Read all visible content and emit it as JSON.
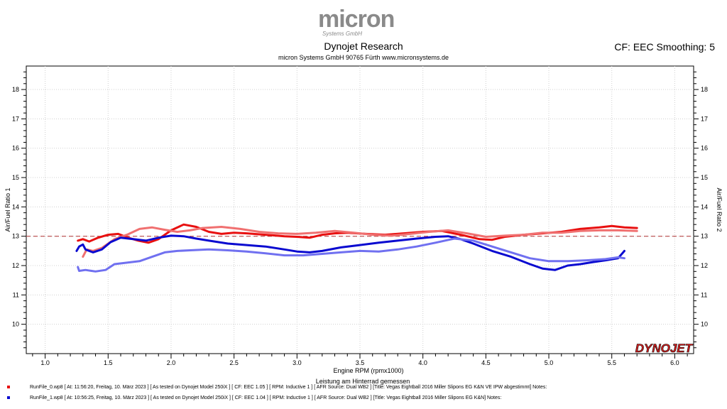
{
  "header": {
    "logo_text": "micron",
    "logo_subtext": "Systems GmbH",
    "title": "Dynojet Research",
    "subtitle": "micron Systems GmbH  90765 Fürth www.micronsystems.de",
    "cf_label": "CF: EEC Smoothing: 5",
    "brand_logo": "DYNOJET"
  },
  "colors": {
    "run0_primary": "#e81010",
    "run0_secondary": "#f07070",
    "run1_primary": "#0a0ad0",
    "run1_secondary": "#7070f0",
    "reference_line": "#b03030"
  },
  "chart_data": {
    "type": "line",
    "xlabel": "Engine RPM (rpmx1000)",
    "xlabel_note": "Leistung am Hinterrad gemessen",
    "ylabel_left": "Air/Fuel Ratio 1",
    "ylabel_right": "Air/Fuel Ratio 2",
    "xlim": [
      0.85,
      6.15
    ],
    "ylim": [
      9.0,
      18.8
    ],
    "x_ticks": [
      "1.0",
      "1.5",
      "2.0",
      "2.5",
      "3.0",
      "3.5",
      "4.0",
      "4.5",
      "5.0",
      "5.5",
      "6.0"
    ],
    "y_ticks": [
      "10",
      "11",
      "12",
      "13",
      "14",
      "15",
      "16",
      "17",
      "18"
    ],
    "reference_line": 13.0,
    "grid": true,
    "series": [
      {
        "name": "RunFile_0.wp8 Air/Fuel Ratio 1",
        "axis": "left",
        "color": "#e81010",
        "points": [
          [
            1.26,
            12.85
          ],
          [
            1.3,
            12.9
          ],
          [
            1.35,
            12.82
          ],
          [
            1.42,
            12.95
          ],
          [
            1.5,
            13.05
          ],
          [
            1.58,
            13.08
          ],
          [
            1.66,
            12.95
          ],
          [
            1.74,
            12.85
          ],
          [
            1.82,
            12.78
          ],
          [
            1.9,
            12.9
          ],
          [
            2.0,
            13.2
          ],
          [
            2.1,
            13.4
          ],
          [
            2.2,
            13.32
          ],
          [
            2.3,
            13.15
          ],
          [
            2.4,
            13.08
          ],
          [
            2.5,
            13.12
          ],
          [
            2.6,
            13.1
          ],
          [
            2.75,
            13.05
          ],
          [
            2.9,
            13.0
          ],
          [
            3.0,
            12.98
          ],
          [
            3.1,
            12.95
          ],
          [
            3.2,
            13.05
          ],
          [
            3.3,
            13.1
          ],
          [
            3.4,
            13.12
          ],
          [
            3.55,
            13.08
          ],
          [
            3.7,
            13.05
          ],
          [
            3.85,
            13.1
          ],
          [
            4.0,
            13.15
          ],
          [
            4.15,
            13.18
          ],
          [
            4.3,
            13.05
          ],
          [
            4.45,
            12.9
          ],
          [
            4.55,
            12.88
          ],
          [
            4.65,
            12.98
          ],
          [
            4.8,
            13.05
          ],
          [
            4.95,
            13.1
          ],
          [
            5.1,
            13.15
          ],
          [
            5.25,
            13.25
          ],
          [
            5.4,
            13.3
          ],
          [
            5.5,
            13.35
          ],
          [
            5.6,
            13.3
          ],
          [
            5.7,
            13.28
          ]
        ]
      },
      {
        "name": "RunFile_0.wp8 Air/Fuel Ratio 2",
        "axis": "right",
        "color": "#f07070",
        "points": [
          [
            1.3,
            12.3
          ],
          [
            1.33,
            12.55
          ],
          [
            1.38,
            12.5
          ],
          [
            1.45,
            12.6
          ],
          [
            1.55,
            12.9
          ],
          [
            1.65,
            13.05
          ],
          [
            1.75,
            13.25
          ],
          [
            1.85,
            13.3
          ],
          [
            1.95,
            13.22
          ],
          [
            2.05,
            13.15
          ],
          [
            2.15,
            13.2
          ],
          [
            2.25,
            13.28
          ],
          [
            2.4,
            13.32
          ],
          [
            2.55,
            13.25
          ],
          [
            2.7,
            13.15
          ],
          [
            2.85,
            13.1
          ],
          [
            3.0,
            13.08
          ],
          [
            3.15,
            13.12
          ],
          [
            3.3,
            13.18
          ],
          [
            3.45,
            13.12
          ],
          [
            3.6,
            13.05
          ],
          [
            3.75,
            13.02
          ],
          [
            3.9,
            13.08
          ],
          [
            4.05,
            13.15
          ],
          [
            4.2,
            13.2
          ],
          [
            4.35,
            13.1
          ],
          [
            4.5,
            12.98
          ],
          [
            4.65,
            13.02
          ],
          [
            4.8,
            13.05
          ],
          [
            4.95,
            13.12
          ],
          [
            5.1,
            13.12
          ],
          [
            5.25,
            13.18
          ],
          [
            5.4,
            13.2
          ],
          [
            5.55,
            13.2
          ],
          [
            5.7,
            13.18
          ]
        ]
      },
      {
        "name": "RunFile_1.wp8 Air/Fuel Ratio 1",
        "axis": "left",
        "color": "#0a0ad0",
        "points": [
          [
            1.25,
            12.5
          ],
          [
            1.27,
            12.65
          ],
          [
            1.3,
            12.72
          ],
          [
            1.32,
            12.55
          ],
          [
            1.38,
            12.45
          ],
          [
            1.45,
            12.55
          ],
          [
            1.52,
            12.8
          ],
          [
            1.6,
            12.95
          ],
          [
            1.7,
            12.9
          ],
          [
            1.8,
            12.85
          ],
          [
            1.9,
            12.95
          ],
          [
            2.0,
            13.02
          ],
          [
            2.1,
            13.0
          ],
          [
            2.2,
            12.92
          ],
          [
            2.3,
            12.85
          ],
          [
            2.45,
            12.75
          ],
          [
            2.6,
            12.7
          ],
          [
            2.75,
            12.65
          ],
          [
            2.9,
            12.55
          ],
          [
            3.0,
            12.48
          ],
          [
            3.1,
            12.45
          ],
          [
            3.2,
            12.5
          ],
          [
            3.35,
            12.62
          ],
          [
            3.5,
            12.7
          ],
          [
            3.65,
            12.78
          ],
          [
            3.8,
            12.85
          ],
          [
            3.95,
            12.92
          ],
          [
            4.1,
            12.98
          ],
          [
            4.2,
            13.0
          ],
          [
            4.3,
            12.9
          ],
          [
            4.4,
            12.75
          ],
          [
            4.55,
            12.5
          ],
          [
            4.7,
            12.3
          ],
          [
            4.85,
            12.05
          ],
          [
            4.95,
            11.9
          ],
          [
            5.05,
            11.85
          ],
          [
            5.15,
            12.0
          ],
          [
            5.25,
            12.05
          ],
          [
            5.35,
            12.12
          ],
          [
            5.45,
            12.18
          ],
          [
            5.55,
            12.25
          ],
          [
            5.6,
            12.5
          ]
        ]
      },
      {
        "name": "RunFile_1.wp8 Air/Fuel Ratio 2",
        "axis": "right",
        "color": "#7070f0",
        "points": [
          [
            1.26,
            11.95
          ],
          [
            1.27,
            11.82
          ],
          [
            1.32,
            11.85
          ],
          [
            1.4,
            11.8
          ],
          [
            1.48,
            11.85
          ],
          [
            1.55,
            12.05
          ],
          [
            1.65,
            12.1
          ],
          [
            1.75,
            12.15
          ],
          [
            1.85,
            12.3
          ],
          [
            1.95,
            12.45
          ],
          [
            2.05,
            12.5
          ],
          [
            2.15,
            12.52
          ],
          [
            2.3,
            12.55
          ],
          [
            2.45,
            12.52
          ],
          [
            2.6,
            12.48
          ],
          [
            2.75,
            12.42
          ],
          [
            2.9,
            12.35
          ],
          [
            3.05,
            12.35
          ],
          [
            3.2,
            12.4
          ],
          [
            3.35,
            12.45
          ],
          [
            3.5,
            12.5
          ],
          [
            3.65,
            12.48
          ],
          [
            3.8,
            12.55
          ],
          [
            3.95,
            12.65
          ],
          [
            4.1,
            12.78
          ],
          [
            4.25,
            12.92
          ],
          [
            4.4,
            12.85
          ],
          [
            4.55,
            12.65
          ],
          [
            4.7,
            12.45
          ],
          [
            4.85,
            12.25
          ],
          [
            5.0,
            12.15
          ],
          [
            5.15,
            12.15
          ],
          [
            5.3,
            12.18
          ],
          [
            5.45,
            12.22
          ],
          [
            5.55,
            12.28
          ],
          [
            5.6,
            12.25
          ]
        ]
      }
    ]
  },
  "legend": {
    "run0_text": "RunFile_0.wp8  [  At:  11:56:20,  Freitag,  10.  März  2023  ]  [  As  tested  on  Dynojet  Model  250iX  ]  [  CF:  EEC  1.05  ]  [  RPM:  Inductive  1  ]  [  AFR  Source:  Dual  WB2  ]  [Title:  Vegas  Eightball  2016  Miller  Slipons  EG  K&N    VE  IPW  abgestimmt]    Notes:",
    "run1_text": "RunFile_1.wp8  [  At:  10:56:25,  Freitag,  10.  März  2023  ]  [  As  tested  on  Dynojet  Model  250iX  ]  [  CF:  EEC  1.04  ]  [  RPM:  Inductive  1  ]  [  AFR  Source:  Dual  WB2  ]  [Title:  Vegas  Eightball  2016  Miller  Slipons  EG  K&N]    Notes:"
  }
}
